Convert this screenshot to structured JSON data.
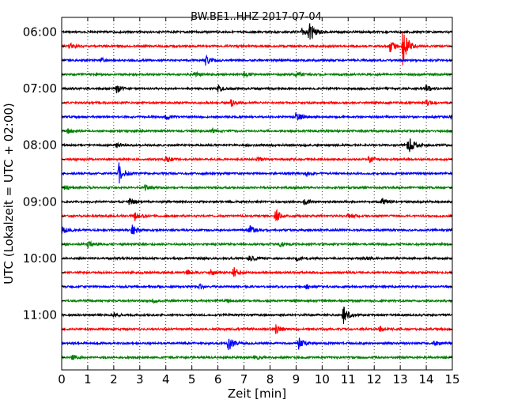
{
  "chart_data": {
    "type": "line",
    "title": "BW.BE1..HHZ 2017-07-04",
    "xlabel": "Zeit  [min]",
    "ylabel": "UTC (Lokalzeit = UTC + 02:00)",
    "xlim": [
      0,
      15
    ],
    "x_ticks": [
      "0",
      "1",
      "2",
      "3",
      "4",
      "5",
      "6",
      "7",
      "8",
      "9",
      "10",
      "11",
      "12",
      "13",
      "14",
      "15"
    ],
    "y_tick_labels": [
      "06:00",
      "07:00",
      "08:00",
      "09:00",
      "10:00",
      "11:00"
    ],
    "trace_minutes": 15,
    "colors": [
      "#000000",
      "#ff0000",
      "#0000ff",
      "#008000"
    ],
    "grid_x": true,
    "traces": [
      {
        "start": "05:45",
        "events": [
          [
            9.5,
            14
          ],
          [
            9.2,
            4
          ]
        ]
      },
      {
        "start": "06:00",
        "events": [
          [
            13.1,
            28
          ],
          [
            0.3,
            5
          ],
          [
            12.6,
            8
          ]
        ]
      },
      {
        "start": "06:15",
        "events": [
          [
            5.5,
            7
          ],
          [
            1.5,
            3
          ]
        ]
      },
      {
        "start": "06:30",
        "events": [
          [
            5.1,
            4
          ],
          [
            7.0,
            4
          ],
          [
            9.0,
            4
          ]
        ]
      },
      {
        "start": "06:45",
        "events": [
          [
            2.1,
            6
          ],
          [
            14.0,
            5
          ],
          [
            6.0,
            4
          ]
        ]
      },
      {
        "start": "07:00",
        "events": [
          [
            6.5,
            4
          ],
          [
            14.0,
            4
          ]
        ]
      },
      {
        "start": "07:15",
        "events": [
          [
            9.0,
            8
          ],
          [
            14.9,
            5
          ],
          [
            4.0,
            3
          ]
        ]
      },
      {
        "start": "07:30",
        "events": [
          [
            0.2,
            3
          ],
          [
            5.8,
            3
          ]
        ]
      },
      {
        "start": "07:45",
        "events": [
          [
            13.3,
            13
          ],
          [
            2.1,
            3
          ]
        ]
      },
      {
        "start": "08:00",
        "events": [
          [
            4.0,
            5
          ],
          [
            11.8,
            5
          ],
          [
            7.5,
            3
          ]
        ]
      },
      {
        "start": "08:15",
        "events": [
          [
            2.2,
            14
          ],
          [
            9.4,
            4
          ]
        ]
      },
      {
        "start": "08:30",
        "events": [
          [
            0.1,
            3
          ],
          [
            3.2,
            3
          ]
        ]
      },
      {
        "start": "08:45",
        "events": [
          [
            2.6,
            4
          ],
          [
            9.3,
            4
          ],
          [
            12.3,
            4
          ]
        ]
      },
      {
        "start": "09:00",
        "events": [
          [
            8.2,
            9
          ],
          [
            2.8,
            5
          ],
          [
            11.0,
            4
          ]
        ]
      },
      {
        "start": "09:15",
        "events": [
          [
            2.7,
            7
          ],
          [
            7.2,
            6
          ],
          [
            0.0,
            5
          ]
        ]
      },
      {
        "start": "09:30",
        "events": [
          [
            1.0,
            4
          ],
          [
            8.4,
            3
          ]
        ]
      },
      {
        "start": "09:45",
        "events": [
          [
            7.2,
            4
          ],
          [
            9.0,
            3
          ],
          [
            11.6,
            3
          ]
        ]
      },
      {
        "start": "10:00",
        "events": [
          [
            6.6,
            7
          ],
          [
            5.7,
            4
          ],
          [
            4.8,
            3
          ]
        ]
      },
      {
        "start": "10:15",
        "events": [
          [
            5.3,
            3
          ],
          [
            9.4,
            3
          ]
        ]
      },
      {
        "start": "10:30",
        "events": [
          [
            3.5,
            3
          ],
          [
            6.3,
            2
          ]
        ]
      },
      {
        "start": "10:45",
        "events": [
          [
            10.8,
            12
          ],
          [
            2.0,
            3
          ]
        ]
      },
      {
        "start": "11:00",
        "events": [
          [
            8.2,
            7
          ],
          [
            12.2,
            4
          ]
        ]
      },
      {
        "start": "11:15",
        "events": [
          [
            6.4,
            10
          ],
          [
            9.1,
            9
          ],
          [
            14.3,
            3
          ]
        ]
      },
      {
        "start": "11:30",
        "events": [
          [
            0.4,
            3
          ],
          [
            7.4,
            3
          ]
        ]
      }
    ]
  }
}
